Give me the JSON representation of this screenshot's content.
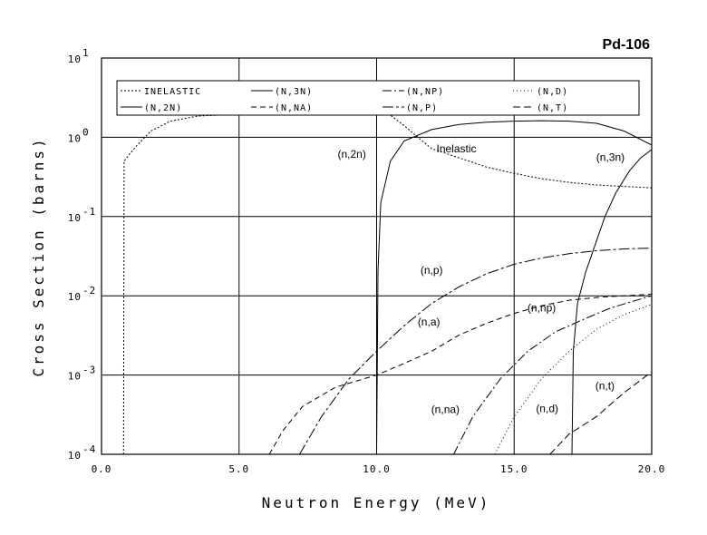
{
  "chart_data": {
    "type": "line",
    "title": "Pd-106",
    "xlabel": "Neutron Energy (MeV)",
    "ylabel": "Cross Section (barns)",
    "xlim": [
      0,
      20
    ],
    "ylim": [
      0.0001,
      10
    ],
    "yscale": "log",
    "grid": true,
    "legend_position": "top",
    "x_ticks": [
      "0.0",
      "5.0",
      "10.0",
      "15.0",
      "20.0"
    ],
    "y_ticks": [
      {
        "mant": "10",
        "exp": "-4"
      },
      {
        "mant": "10",
        "exp": "-3"
      },
      {
        "mant": "10",
        "exp": "-2"
      },
      {
        "mant": "10",
        "exp": "-1"
      },
      {
        "mant": "10",
        "exp": "0"
      },
      {
        "mant": "10",
        "exp": "1"
      }
    ],
    "legend": [
      "INELASTIC",
      "(N,3N)",
      "(N,NP)",
      "(N,D)",
      "(N,2N)",
      "(N,NA)",
      "(N,P)",
      "(N,T)"
    ],
    "series": [
      {
        "name": "INELASTIC",
        "dash": "2,2",
        "points": [
          [
            0.8,
            0.0001
          ],
          [
            0.82,
            0.5
          ],
          [
            1.0,
            0.6
          ],
          [
            1.3,
            0.8
          ],
          [
            1.8,
            1.2
          ],
          [
            2.5,
            1.6
          ],
          [
            3.5,
            1.85
          ],
          [
            5,
            1.95
          ],
          [
            7,
            1.95
          ],
          [
            9,
            1.95
          ],
          [
            10.5,
            1.9
          ],
          [
            11,
            1.4
          ],
          [
            11.5,
            1.0
          ],
          [
            12,
            0.72
          ],
          [
            13,
            0.55
          ],
          [
            14,
            0.42
          ],
          [
            15,
            0.35
          ],
          [
            16,
            0.3
          ],
          [
            17,
            0.27
          ],
          [
            18,
            0.25
          ],
          [
            19,
            0.24
          ],
          [
            20,
            0.23
          ]
        ]
      },
      {
        "name": "(N,2N)",
        "dash": "",
        "points": [
          [
            10.0,
            0.0001
          ],
          [
            10.05,
            0.02
          ],
          [
            10.15,
            0.15
          ],
          [
            10.5,
            0.5
          ],
          [
            11,
            0.9
          ],
          [
            12,
            1.25
          ],
          [
            13,
            1.45
          ],
          [
            14,
            1.55
          ],
          [
            15,
            1.6
          ],
          [
            16,
            1.62
          ],
          [
            17,
            1.6
          ],
          [
            18,
            1.5
          ],
          [
            19,
            1.2
          ],
          [
            20,
            0.8
          ]
        ]
      },
      {
        "name": "(N,3N)",
        "dash": "",
        "points": [
          [
            17.1,
            0.0001
          ],
          [
            17.15,
            0.002
          ],
          [
            17.3,
            0.008
          ],
          [
            17.6,
            0.02
          ],
          [
            18,
            0.05
          ],
          [
            18.3,
            0.1
          ],
          [
            18.7,
            0.2
          ],
          [
            19.2,
            0.38
          ],
          [
            19.6,
            0.55
          ],
          [
            20,
            0.7
          ]
        ]
      },
      {
        "name": "(N,P)",
        "dash": "12,3,3,3",
        "points": [
          [
            7.2,
            0.0001
          ],
          [
            8,
            0.0003
          ],
          [
            9,
            0.0009
          ],
          [
            10,
            0.002
          ],
          [
            11,
            0.0042
          ],
          [
            12,
            0.008
          ],
          [
            13,
            0.013
          ],
          [
            14,
            0.019
          ],
          [
            15,
            0.025
          ],
          [
            16,
            0.03
          ],
          [
            17,
            0.034
          ],
          [
            18,
            0.037
          ],
          [
            19,
            0.039
          ],
          [
            20,
            0.04
          ]
        ]
      },
      {
        "name": "(N,NA)",
        "dash": "6,4",
        "points": [
          [
            6.1,
            0.0001
          ],
          [
            6.6,
            0.0002
          ],
          [
            7.3,
            0.0004
          ],
          [
            8.5,
            0.0007
          ],
          [
            10,
            0.001
          ],
          [
            11,
            0.0014
          ],
          [
            12,
            0.002
          ],
          [
            13,
            0.0032
          ],
          [
            14,
            0.0045
          ],
          [
            15,
            0.006
          ],
          [
            16,
            0.0075
          ],
          [
            17,
            0.0088
          ],
          [
            18,
            0.0095
          ],
          [
            19,
            0.01
          ],
          [
            20,
            0.0105
          ]
        ]
      },
      {
        "name": "(N,NP)",
        "dash": "10,3,2,3",
        "points": [
          [
            12.8,
            0.0001
          ],
          [
            13.5,
            0.0003
          ],
          [
            14.5,
            0.0009
          ],
          [
            15.5,
            0.002
          ],
          [
            16.5,
            0.0035
          ],
          [
            17.5,
            0.005
          ],
          [
            18.5,
            0.007
          ],
          [
            19.3,
            0.0085
          ],
          [
            20,
            0.01
          ]
        ]
      },
      {
        "name": "(N,D)",
        "dash": "1,3",
        "points": [
          [
            14.3,
            0.0001
          ],
          [
            15,
            0.0003
          ],
          [
            16,
            0.0009
          ],
          [
            17,
            0.002
          ],
          [
            18,
            0.0038
          ],
          [
            19,
            0.0058
          ],
          [
            20,
            0.0078
          ]
        ]
      },
      {
        "name": "(N,T)",
        "dash": "8,4",
        "points": [
          [
            16.3,
            0.0001
          ],
          [
            17,
            0.00018
          ],
          [
            18,
            0.0003
          ],
          [
            19,
            0.0006
          ],
          [
            20,
            0.0011
          ]
        ]
      }
    ],
    "annotations": [
      {
        "text": "(n,2n)",
        "x": 9.1,
        "y": 0.55
      },
      {
        "text": "Inelastic",
        "x": 12.9,
        "y": 0.65
      },
      {
        "text": "(n,3n)",
        "x": 18.5,
        "y": 0.5
      },
      {
        "text": "(n,p)",
        "x": 12.0,
        "y": 0.019
      },
      {
        "text": "(n,a)",
        "x": 11.9,
        "y": 0.0042
      },
      {
        "text": "(n,np)",
        "x": 16.0,
        "y": 0.0063
      },
      {
        "text": "(n,na)",
        "x": 12.5,
        "y": 0.00033
      },
      {
        "text": "(n,d)",
        "x": 16.2,
        "y": 0.00034
      },
      {
        "text": "(n,t)",
        "x": 18.3,
        "y": 0.00066
      }
    ]
  }
}
